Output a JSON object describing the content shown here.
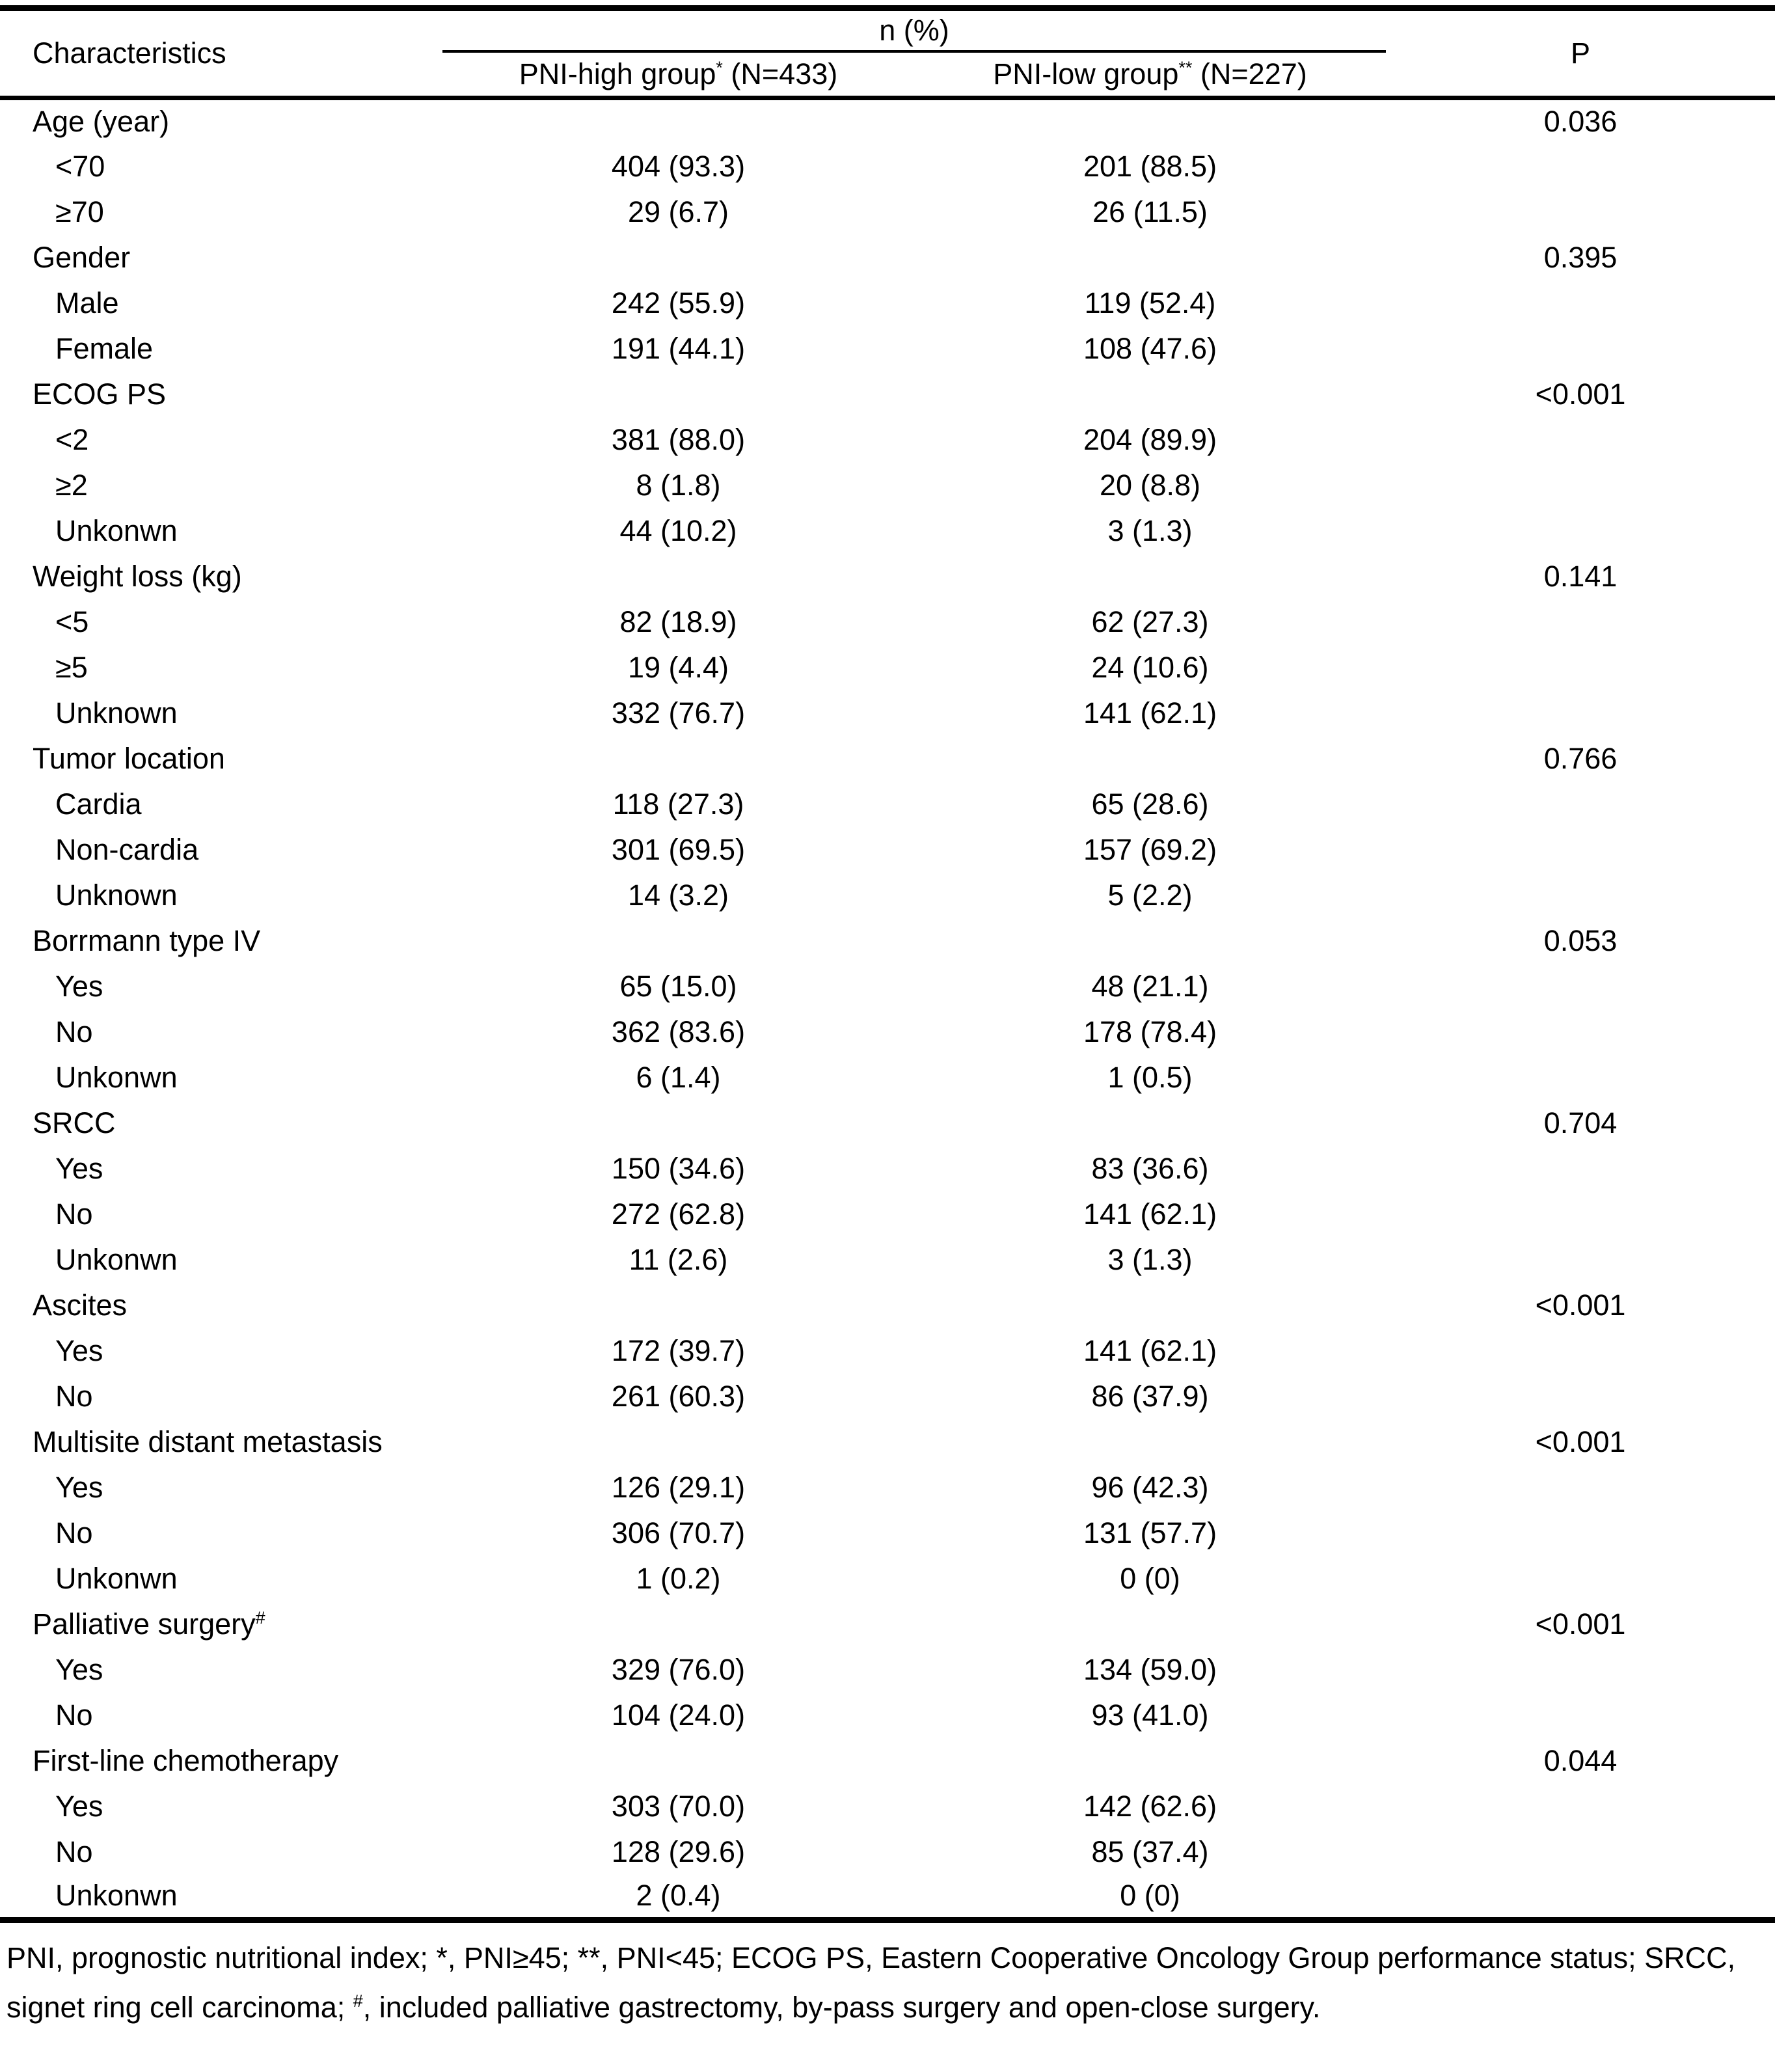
{
  "table": {
    "header": {
      "characteristics": "Characteristics",
      "n_pct": "n (%)",
      "p": "P",
      "group_high": {
        "base": "PNI-high group",
        "sup": "*",
        "rest": " (N=433)"
      },
      "group_low": {
        "base": "PNI-low group",
        "sup": "**",
        "rest": " (N=227)"
      }
    },
    "rows": [
      {
        "type": "category",
        "label": "Age (year)",
        "p": "0.036"
      },
      {
        "type": "sub",
        "label": "<70",
        "high": "404 (93.3)",
        "low": "201 (88.5)"
      },
      {
        "type": "sub",
        "label": "≥70",
        "high": "29 (6.7)",
        "low": "26 (11.5)"
      },
      {
        "type": "category",
        "label": "Gender",
        "p": "0.395"
      },
      {
        "type": "sub",
        "label": "Male",
        "high": "242 (55.9)",
        "low": "119 (52.4)"
      },
      {
        "type": "sub",
        "label": "Female",
        "high": "191 (44.1)",
        "low": "108 (47.6)"
      },
      {
        "type": "category",
        "label": "ECOG PS",
        "p": "<0.001"
      },
      {
        "type": "sub",
        "label": "<2",
        "high": "381 (88.0)",
        "low": "204 (89.9)"
      },
      {
        "type": "sub",
        "label": "≥2",
        "high": "8 (1.8)",
        "low": "20 (8.8)"
      },
      {
        "type": "sub",
        "label": "Unkonwn",
        "high": "44 (10.2)",
        "low": "3 (1.3)"
      },
      {
        "type": "category",
        "label": "Weight loss (kg)",
        "p": "0.141"
      },
      {
        "type": "sub",
        "label": "<5",
        "high": "82 (18.9)",
        "low": "62 (27.3)"
      },
      {
        "type": "sub",
        "label": "≥5",
        "high": "19 (4.4)",
        "low": "24 (10.6)"
      },
      {
        "type": "sub",
        "label": "Unknown",
        "high": "332 (76.7)",
        "low": "141 (62.1)"
      },
      {
        "type": "category",
        "label": "Tumor location",
        "p": "0.766"
      },
      {
        "type": "sub",
        "label": "Cardia",
        "high": "118 (27.3)",
        "low": "65 (28.6)"
      },
      {
        "type": "sub",
        "label": "Non-cardia",
        "high": "301 (69.5)",
        "low": "157 (69.2)"
      },
      {
        "type": "sub",
        "label": "Unknown",
        "high": "14 (3.2)",
        "low": "5 (2.2)"
      },
      {
        "type": "category",
        "label": "Borrmann type IV",
        "p": "0.053"
      },
      {
        "type": "sub",
        "label": "Yes",
        "high": "65 (15.0)",
        "low": "48 (21.1)"
      },
      {
        "type": "sub",
        "label": "No",
        "high": "362 (83.6)",
        "low": "178 (78.4)"
      },
      {
        "type": "sub",
        "label": "Unkonwn",
        "high": "6 (1.4)",
        "low": "1 (0.5)"
      },
      {
        "type": "category",
        "label": "SRCC",
        "p": "0.704"
      },
      {
        "type": "sub",
        "label": "Yes",
        "high": "150 (34.6)",
        "low": "83 (36.6)"
      },
      {
        "type": "sub",
        "label": "No",
        "high": "272 (62.8)",
        "low": "141 (62.1)"
      },
      {
        "type": "sub",
        "label": "Unkonwn",
        "high": "11 (2.6)",
        "low": "3 (1.3)"
      },
      {
        "type": "category",
        "label": "Ascites",
        "p": "<0.001"
      },
      {
        "type": "sub",
        "label": "Yes",
        "high": "172 (39.7)",
        "low": "141 (62.1)"
      },
      {
        "type": "sub",
        "label": "No",
        "high": "261 (60.3)",
        "low": "86 (37.9)"
      },
      {
        "type": "category",
        "label": "Multisite distant metastasis",
        "p": "<0.001"
      },
      {
        "type": "sub",
        "label": "Yes",
        "high": "126 (29.1)",
        "low": "96 (42.3)"
      },
      {
        "type": "sub",
        "label": "No",
        "high": "306 (70.7)",
        "low": "131 (57.7)"
      },
      {
        "type": "sub",
        "label": "Unkonwn",
        "high": "1 (0.2)",
        "low": "0 (0)"
      },
      {
        "type": "category",
        "label": "Palliative surgery",
        "label_sup": "#",
        "p": "<0.001"
      },
      {
        "type": "sub",
        "label": "Yes",
        "high": "329 (76.0)",
        "low": "134 (59.0)"
      },
      {
        "type": "sub",
        "label": "No",
        "high": "104 (24.0)",
        "low": "93 (41.0)"
      },
      {
        "type": "category",
        "label": "First-line chemotherapy",
        "p": "0.044"
      },
      {
        "type": "sub",
        "label": "Yes",
        "high": "303 (70.0)",
        "low": "142 (62.6)"
      },
      {
        "type": "sub",
        "label": "No",
        "high": "128 (29.6)",
        "low": "85 (37.4)"
      },
      {
        "type": "sub",
        "label": "Unkonwn",
        "high": "2 (0.4)",
        "low": "0 (0)"
      }
    ],
    "footnote": {
      "line1": "PNI, prognostic nutritional index; *, PNI≥45; **, PNI<45; ECOG PS, Eastern Cooperative Oncology Group performance status; SRCC,",
      "line2": {
        "pre": "signet ring cell carcinoma; ",
        "sup": "#",
        "post": ", included palliative gastrectomy, by-pass surgery and open-close surgery."
      }
    }
  }
}
